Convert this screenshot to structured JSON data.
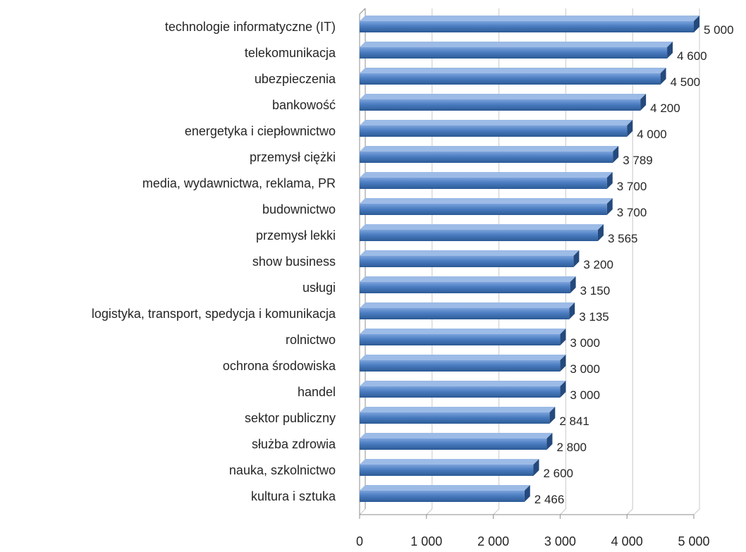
{
  "chart_data": {
    "type": "bar",
    "orientation": "horizontal",
    "style": "3d",
    "categories": [
      "technologie informatyczne (IT)",
      "telekomunikacja",
      "ubezpieczenia",
      "bankowość",
      "energetyka i ciepłownictwo",
      "przemysł ciężki",
      "media, wydawnictwa, reklama, PR",
      "budownictwo",
      "przemysł lekki",
      "show business",
      "usługi",
      "logistyka, transport, spedycja i komunikacja",
      "rolnictwo",
      "ochrona środowiska",
      "handel",
      "sektor publiczny",
      "służba zdrowia",
      "nauka, szkolnictwo",
      "kultura i sztuka"
    ],
    "values": [
      5000,
      4600,
      4500,
      4200,
      4000,
      3789,
      3700,
      3700,
      3565,
      3200,
      3150,
      3135,
      3000,
      3000,
      3000,
      2841,
      2800,
      2600,
      2466
    ],
    "value_labels": [
      "5 000",
      "4 600",
      "4 500",
      "4 200",
      "4 000",
      "3 789",
      "3 700",
      "3 700",
      "3 565",
      "3 200",
      "3 150",
      "3 135",
      "3 000",
      "3 000",
      "3 000",
      "2 841",
      "2 800",
      "2 600",
      "2 466"
    ],
    "xlim": [
      0,
      5000
    ],
    "xticks": [
      0,
      1000,
      2000,
      3000,
      4000,
      5000
    ],
    "xtick_labels": [
      "0",
      "1 000",
      "2 000",
      "3 000",
      "4 000",
      "5 000"
    ],
    "grid": true,
    "legend": "none",
    "colors": {
      "bar_front_top": "#6f9ad6",
      "bar_front_bottom": "#2f5f9e",
      "bar_side": "#24497c",
      "bar_top": "#9cbbe6",
      "grid": "#c8c8c8",
      "axis": "#8c8c8c",
      "text": "#262626"
    }
  }
}
